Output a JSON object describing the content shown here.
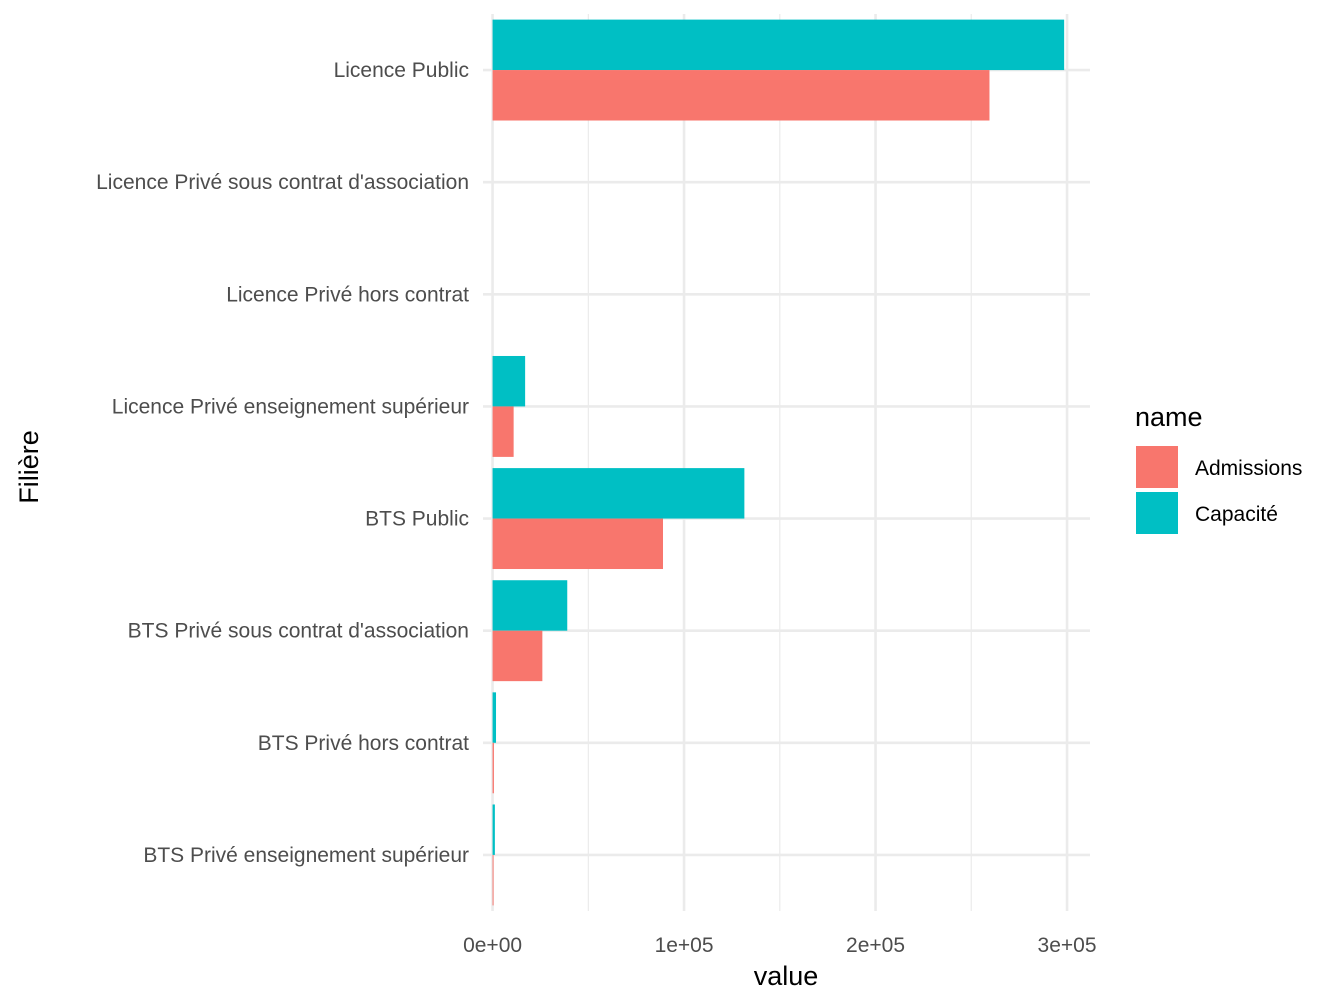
{
  "chart_data": {
    "type": "bar",
    "orientation": "horizontal",
    "categories": [
      "Licence Public",
      "Licence Privé sous contrat d'association",
      "Licence Privé hors contrat",
      "Licence Privé enseignement supérieur",
      "BTS Public",
      "BTS Privé sous contrat d'association",
      "BTS Privé hors contrat",
      "BTS Privé enseignement supérieur"
    ],
    "series": [
      {
        "name": "Admissions",
        "color": "#F8766D",
        "values": [
          259500,
          0,
          0,
          11000,
          89000,
          26000,
          700,
          500
        ]
      },
      {
        "name": "Capacité",
        "color": "#00BFC4",
        "values": [
          298500,
          0,
          0,
          17000,
          131500,
          39000,
          1800,
          1200
        ]
      }
    ],
    "xlabel": "value",
    "ylabel": "Filière",
    "xlim": [
      -5000,
      312000
    ],
    "x_ticks": [
      0,
      100000,
      200000,
      300000
    ],
    "x_tick_labels": [
      "0e+00",
      "1e+05",
      "2e+05",
      "3e+05"
    ],
    "legend_title": "name",
    "legend_position": "right",
    "grid": true
  }
}
